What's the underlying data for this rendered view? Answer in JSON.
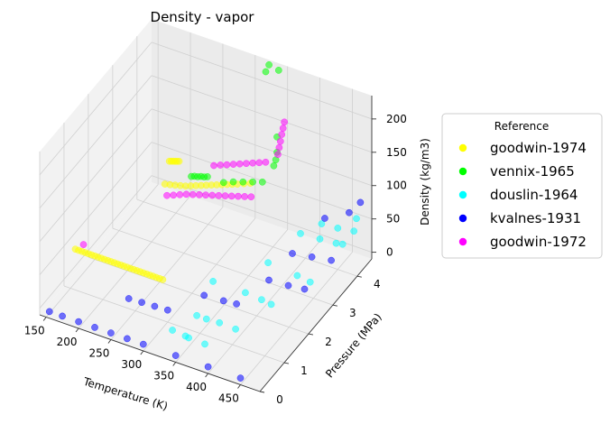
{
  "chart_data": {
    "type": "scatter3d",
    "title": "Density - vapor",
    "xlabel": "Temperature (K)",
    "ylabel": "Pressure (MPa)",
    "zlabel": "Density (kg/m3)",
    "xlim": [
      140,
      480
    ],
    "ylim": [
      0,
      4.6
    ],
    "zlim": [
      -10,
      235
    ],
    "xticks": [
      150,
      200,
      250,
      300,
      350,
      400,
      450
    ],
    "yticks": [
      0,
      1,
      2,
      3,
      4
    ],
    "zticks": [
      0,
      50,
      100,
      150,
      200
    ],
    "legend_title": "Reference",
    "legend_position": "right",
    "series": [
      {
        "name": "goodwin-1974",
        "color": "#ffff00",
        "points": [
          [
            150,
            1.2,
            40
          ],
          [
            155,
            1.2,
            40
          ],
          [
            160,
            1.2,
            40
          ],
          [
            165,
            1.2,
            40
          ],
          [
            170,
            1.2,
            40
          ],
          [
            175,
            1.2,
            40
          ],
          [
            180,
            1.2,
            40
          ],
          [
            185,
            1.2,
            40
          ],
          [
            190,
            1.2,
            40
          ],
          [
            195,
            1.2,
            40
          ],
          [
            200,
            1.2,
            40
          ],
          [
            205,
            1.2,
            40
          ],
          [
            210,
            1.2,
            40
          ],
          [
            215,
            1.2,
            40
          ],
          [
            220,
            1.2,
            40
          ],
          [
            225,
            1.2,
            40
          ],
          [
            230,
            1.2,
            40
          ],
          [
            235,
            1.2,
            40
          ],
          [
            240,
            1.2,
            40
          ],
          [
            245,
            1.2,
            40
          ],
          [
            250,
            1.2,
            40
          ],
          [
            255,
            1.2,
            40
          ],
          [
            260,
            1.2,
            40
          ],
          [
            265,
            1.2,
            40
          ],
          [
            270,
            1.2,
            40
          ],
          [
            275,
            1.2,
            40
          ],
          [
            280,
            1.2,
            40
          ],
          [
            285,
            1.2,
            40
          ],
          [
            198,
            3.6,
            50
          ],
          [
            206,
            3.6,
            52
          ],
          [
            214,
            3.6,
            54
          ],
          [
            222,
            3.6,
            56
          ],
          [
            230,
            3.6,
            58
          ],
          [
            238,
            3.6,
            61
          ],
          [
            246,
            3.6,
            64
          ],
          [
            254,
            3.6,
            67
          ],
          [
            262,
            3.6,
            70
          ],
          [
            270,
            3.6,
            73
          ],
          [
            278,
            3.6,
            76
          ],
          [
            286,
            3.6,
            79
          ],
          [
            294,
            3.6,
            82
          ],
          [
            302,
            3.6,
            85
          ],
          [
            310,
            3.6,
            88
          ],
          [
            320,
            3.6,
            92
          ],
          [
            330,
            3.6,
            96
          ],
          [
            175,
            4.4,
            42
          ],
          [
            178,
            4.4,
            43
          ],
          [
            181,
            4.4,
            44
          ],
          [
            184,
            4.4,
            45
          ],
          [
            187,
            4.4,
            46
          ],
          [
            190,
            4.4,
            47
          ]
        ]
      },
      {
        "name": "vennix-1965",
        "color": "#00ff00",
        "points": [
          [
            205,
            4.5,
            25
          ],
          [
            210,
            4.5,
            27
          ],
          [
            215,
            4.5,
            28
          ],
          [
            220,
            4.5,
            30
          ],
          [
            225,
            4.5,
            31
          ],
          [
            230,
            4.5,
            33
          ],
          [
            300,
            3.3,
            100
          ],
          [
            315,
            3.3,
            106
          ],
          [
            330,
            3.3,
            111
          ],
          [
            345,
            3.3,
            116
          ],
          [
            360,
            3.3,
            121
          ],
          [
            370,
            3.5,
            140
          ],
          [
            373,
            3.5,
            150
          ],
          [
            375,
            3.5,
            162
          ],
          [
            375,
            3.5,
            185
          ],
          [
            320,
            4.5,
            221
          ],
          [
            325,
            4.5,
            233
          ],
          [
            340,
            4.5,
            230
          ]
        ]
      },
      {
        "name": "douslin-1964",
        "color": "#00ffff",
        "points": [
          [
            330,
            0.4,
            14
          ],
          [
            350,
            0.4,
            12
          ],
          [
            355,
            0.4,
            11
          ],
          [
            380,
            0.4,
            10
          ],
          [
            345,
            1.0,
            15
          ],
          [
            360,
            1.0,
            15
          ],
          [
            380,
            1.0,
            16
          ],
          [
            405,
            1.0,
            15
          ],
          [
            340,
            1.8,
            30
          ],
          [
            390,
            1.8,
            30
          ],
          [
            415,
            1.8,
            28
          ],
          [
            430,
            1.8,
            26
          ],
          [
            395,
            2.6,
            42
          ],
          [
            440,
            2.6,
            38
          ],
          [
            460,
            2.6,
            35
          ],
          [
            415,
            3.4,
            58
          ],
          [
            445,
            3.4,
            60
          ],
          [
            470,
            3.4,
            62
          ],
          [
            480,
            3.4,
            64
          ],
          [
            425,
            4.0,
            50
          ],
          [
            450,
            4.0,
            52
          ],
          [
            475,
            4.0,
            56
          ],
          [
            460,
            4.5,
            48
          ]
        ]
      },
      {
        "name": "kvalnes-1931",
        "color": "#0000ff",
        "points": [
          [
            155,
            0.0,
            0
          ],
          [
            175,
            0.0,
            0
          ],
          [
            200,
            0.0,
            0
          ],
          [
            225,
            0.0,
            0
          ],
          [
            250,
            0.0,
            0
          ],
          [
            275,
            0.0,
            0
          ],
          [
            300,
            0.0,
            0
          ],
          [
            350,
            0.0,
            0
          ],
          [
            400,
            0.0,
            0
          ],
          [
            450,
            0.0,
            0
          ],
          [
            240,
            1.0,
            5
          ],
          [
            260,
            1.0,
            6
          ],
          [
            280,
            1.0,
            7
          ],
          [
            300,
            1.0,
            8
          ],
          [
            330,
            1.7,
            10
          ],
          [
            360,
            1.7,
            12
          ],
          [
            380,
            1.7,
            14
          ],
          [
            400,
            2.5,
            22
          ],
          [
            430,
            2.5,
            24
          ],
          [
            455,
            2.5,
            27
          ],
          [
            410,
            3.2,
            35
          ],
          [
            440,
            3.2,
            40
          ],
          [
            470,
            3.2,
            45
          ],
          [
            430,
            4.0,
            60
          ],
          [
            460,
            4.2,
            70
          ],
          [
            470,
            4.4,
            80
          ]
        ]
      },
      {
        "name": "goodwin-1972",
        "color": "#ff00ff",
        "points": [
          [
            155,
            1.4,
            40
          ],
          [
            220,
            3.1,
            62
          ],
          [
            230,
            3.1,
            66
          ],
          [
            240,
            3.1,
            70
          ],
          [
            250,
            3.1,
            74
          ],
          [
            260,
            3.1,
            77
          ],
          [
            270,
            3.1,
            80
          ],
          [
            280,
            3.1,
            83
          ],
          [
            290,
            3.1,
            86
          ],
          [
            300,
            3.1,
            89
          ],
          [
            310,
            3.1,
            92
          ],
          [
            320,
            3.1,
            95
          ],
          [
            330,
            3.1,
            98
          ],
          [
            340,
            3.1,
            101
          ],
          [
            350,
            3.1,
            104
          ],
          [
            270,
            3.7,
            98
          ],
          [
            280,
            3.7,
            102
          ],
          [
            290,
            3.7,
            106
          ],
          [
            300,
            3.7,
            110
          ],
          [
            310,
            3.7,
            114
          ],
          [
            320,
            3.7,
            118
          ],
          [
            330,
            3.7,
            122
          ],
          [
            340,
            3.7,
            126
          ],
          [
            350,
            3.7,
            130
          ],
          [
            350,
            4.2,
            120
          ],
          [
            352,
            4.2,
            131
          ],
          [
            354,
            4.2,
            141
          ],
          [
            356,
            4.2,
            152
          ],
          [
            358,
            4.2,
            162
          ],
          [
            360,
            4.2,
            172
          ]
        ]
      }
    ]
  }
}
